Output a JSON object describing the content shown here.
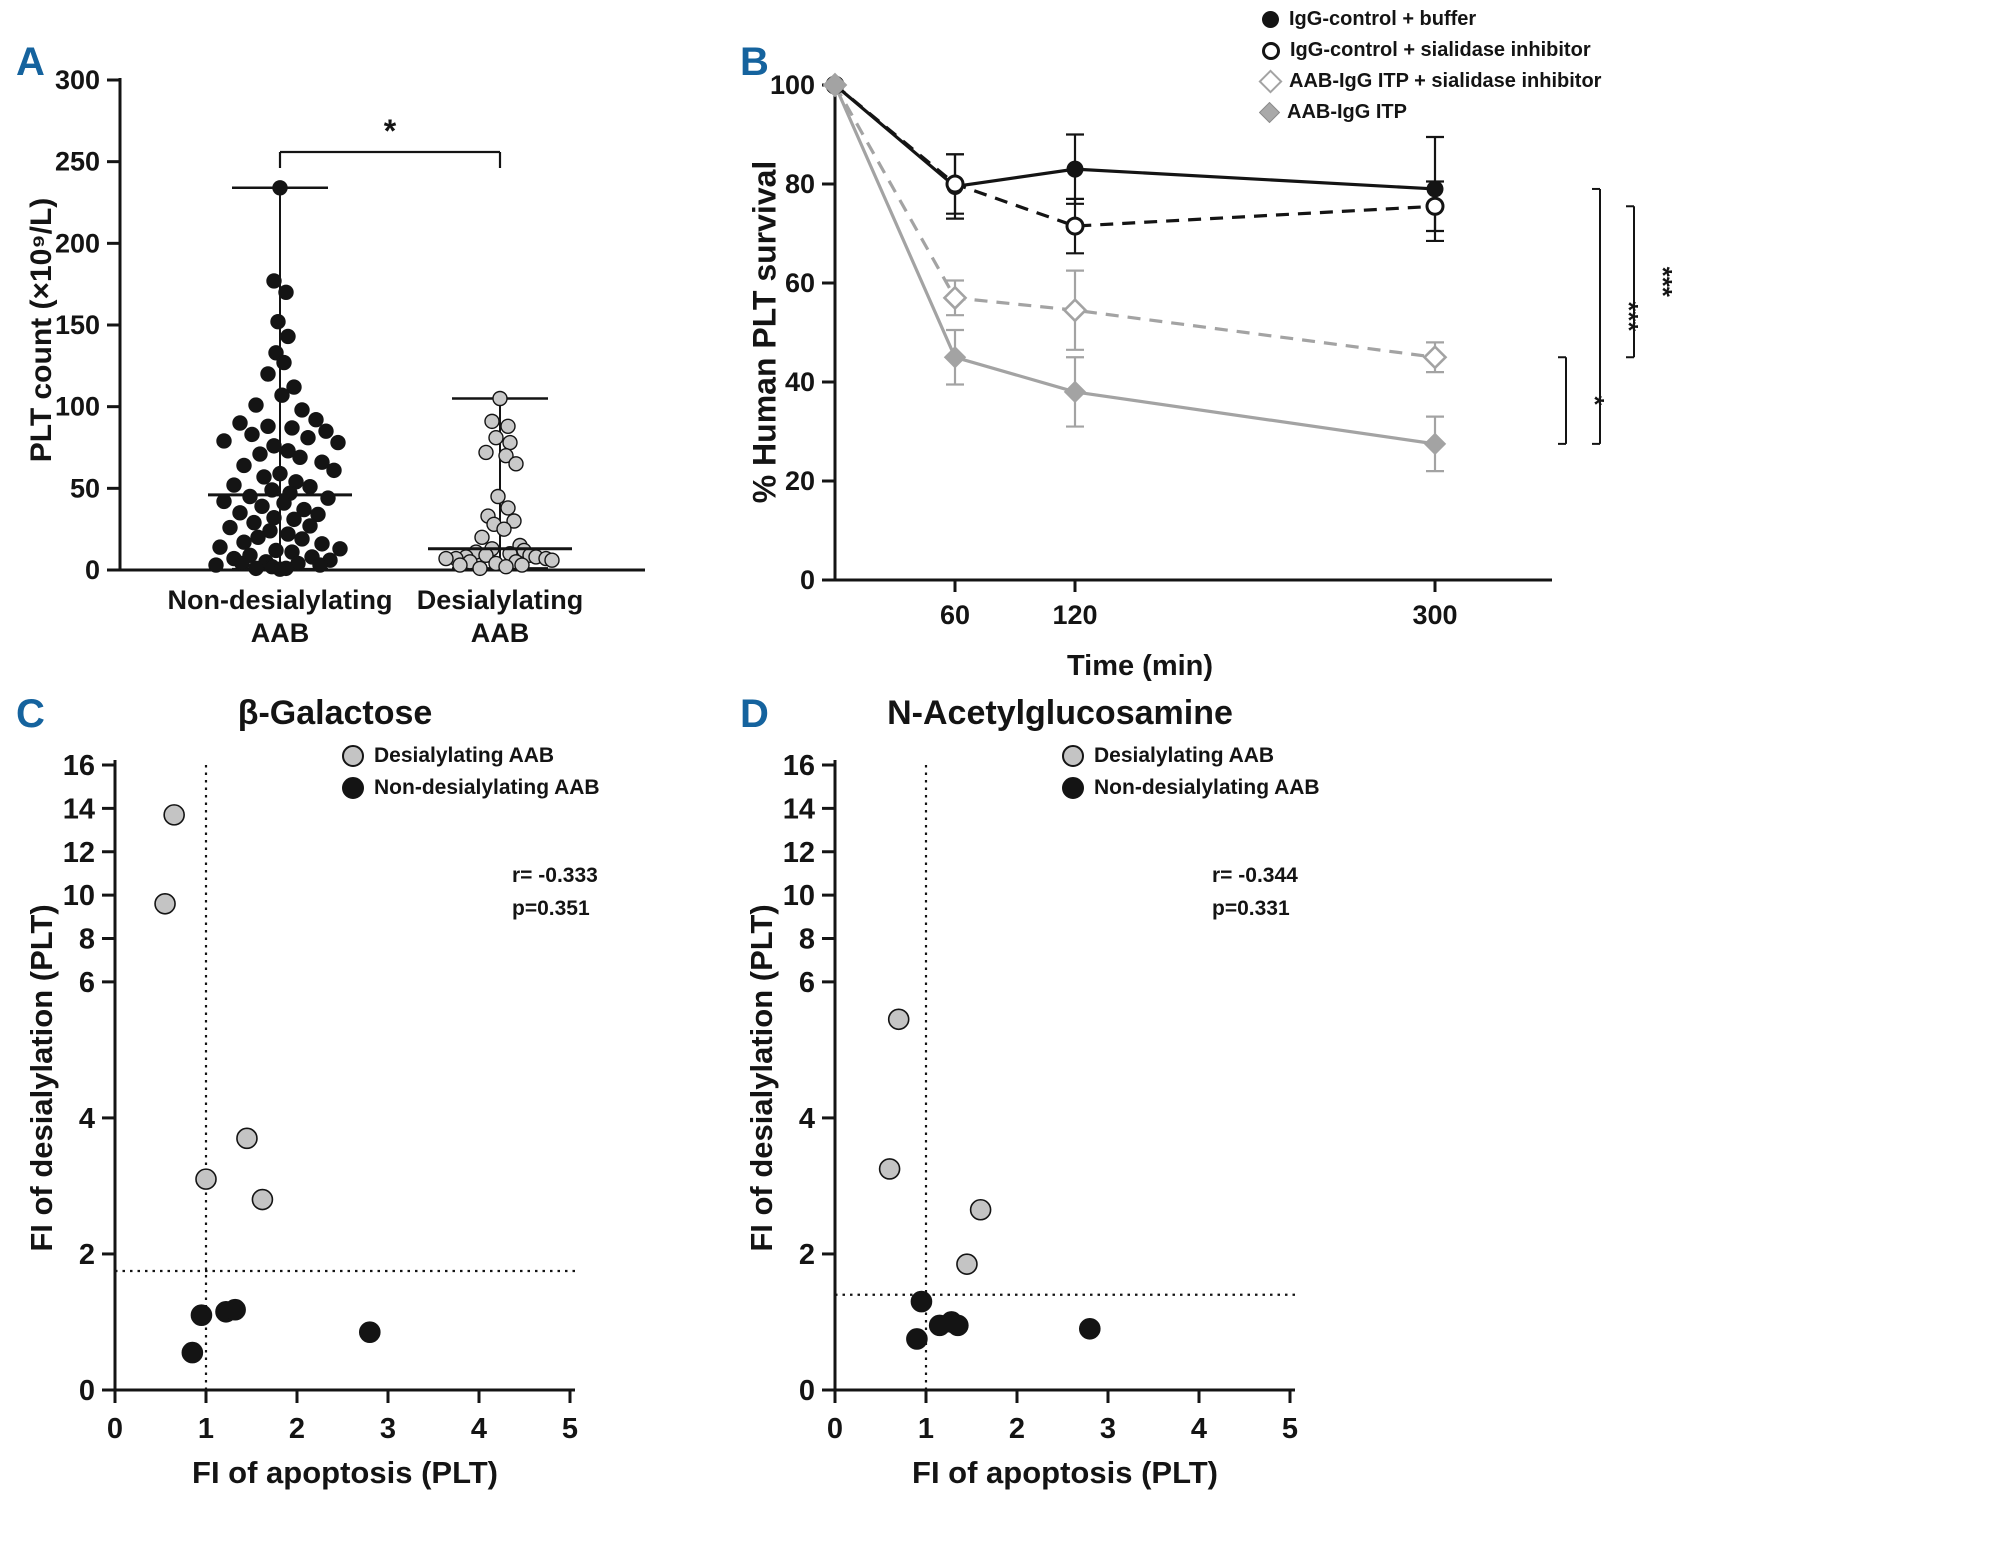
{
  "panels": {
    "A": {
      "letter": "A",
      "ylabel": "PLT count (×10⁹/L)",
      "groups": [
        {
          "line1": "Non-desialylating",
          "line2": "AAB"
        },
        {
          "line1": "Desialylating",
          "line2": "AAB"
        }
      ]
    },
    "B": {
      "letter": "B",
      "ylabel": "% Human PLT survival",
      "xlabel": "Time (min)",
      "legend": [
        "IgG-control + buffer",
        "IgG-control + sialidase inhibitor",
        "AAB-IgG ITP + sialidase inhibitor",
        "AAB-IgG ITP"
      ]
    },
    "C": {
      "letter": "C",
      "title": "β-Galactose",
      "ylabel": "FI of desialylation (PLT)",
      "xlabel": "FI of apoptosis (PLT)",
      "legend": [
        "Desialylating AAB",
        "Non-desialylating AAB"
      ],
      "stats_r": "r= -0.333",
      "stats_p": "p=0.351"
    },
    "D": {
      "letter": "D",
      "title": "N-Acetylglucosamine",
      "ylabel": "FI of desialylation (PLT)",
      "xlabel": "FI of apoptosis (PLT)",
      "legend": [
        "Desialylating AAB",
        "Non-desialylating AAB"
      ],
      "stats_r": "r= -0.344",
      "stats_p": "p=0.331"
    }
  },
  "chart_data": [
    {
      "id": "A",
      "type": "scatter",
      "subtype": "dot-plot-with-median-and-range",
      "ylabel": "PLT count (×10⁹/L)",
      "ylim": [
        0,
        300
      ],
      "yticks": [
        0,
        50,
        100,
        150,
        200,
        250,
        300
      ],
      "significance_label": "*",
      "groups": [
        {
          "name": "Non-desialylating AAB",
          "marker_fill": "#141414",
          "median": 46,
          "min": 0.5,
          "max": 234,
          "points": [
            [
              0,
              234
            ],
            [
              -6,
              177
            ],
            [
              6,
              170
            ],
            [
              -2,
              152
            ],
            [
              8,
              143
            ],
            [
              -4,
              133
            ],
            [
              4,
              127
            ],
            [
              -12,
              120
            ],
            [
              14,
              112
            ],
            [
              2,
              107
            ],
            [
              -24,
              101
            ],
            [
              22,
              98
            ],
            [
              36,
              92
            ],
            [
              -40,
              90
            ],
            [
              -12,
              88
            ],
            [
              12,
              87
            ],
            [
              46,
              85
            ],
            [
              -28,
              83
            ],
            [
              28,
              81
            ],
            [
              -56,
              79
            ],
            [
              58,
              78
            ],
            [
              -6,
              76
            ],
            [
              8,
              73
            ],
            [
              -20,
              71
            ],
            [
              20,
              69
            ],
            [
              42,
              66
            ],
            [
              -36,
              64
            ],
            [
              54,
              61
            ],
            [
              0,
              59
            ],
            [
              -16,
              57
            ],
            [
              16,
              54
            ],
            [
              -46,
              52
            ],
            [
              30,
              51
            ],
            [
              -8,
              49
            ],
            [
              10,
              47
            ],
            [
              -30,
              45
            ],
            [
              48,
              44
            ],
            [
              -56,
              42
            ],
            [
              4,
              41
            ],
            [
              -18,
              39
            ],
            [
              24,
              37
            ],
            [
              -40,
              35
            ],
            [
              38,
              34
            ],
            [
              -6,
              32
            ],
            [
              14,
              31
            ],
            [
              -26,
              29
            ],
            [
              30,
              27
            ],
            [
              -50,
              26
            ],
            [
              -10,
              24
            ],
            [
              8,
              22
            ],
            [
              -22,
              20
            ],
            [
              22,
              19
            ],
            [
              -36,
              17
            ],
            [
              42,
              16
            ],
            [
              -60,
              14
            ],
            [
              60,
              13
            ],
            [
              -4,
              12
            ],
            [
              12,
              11
            ],
            [
              -30,
              9
            ],
            [
              32,
              8
            ],
            [
              -46,
              7
            ],
            [
              50,
              6
            ],
            [
              -14,
              5
            ],
            [
              18,
              4
            ],
            [
              -38,
              4
            ],
            [
              40,
              3
            ],
            [
              -64,
              3
            ],
            [
              -8,
              2
            ],
            [
              6,
              1
            ],
            [
              -24,
              1
            ],
            [
              0,
              0.5
            ]
          ]
        },
        {
          "name": "Desialylating AAB",
          "marker_fill": "#c9c9c9",
          "median": 13,
          "min": 1,
          "max": 105,
          "points": [
            [
              0,
              105
            ],
            [
              -8,
              91
            ],
            [
              8,
              88
            ],
            [
              -4,
              81
            ],
            [
              10,
              78
            ],
            [
              -14,
              72
            ],
            [
              6,
              70
            ],
            [
              16,
              65
            ],
            [
              -2,
              45
            ],
            [
              8,
              38
            ],
            [
              -12,
              33
            ],
            [
              14,
              30
            ],
            [
              -6,
              28
            ],
            [
              4,
              25
            ],
            [
              -18,
              20
            ],
            [
              20,
              15
            ],
            [
              -8,
              13
            ],
            [
              24,
              12
            ],
            [
              -24,
              11
            ],
            [
              10,
              10
            ],
            [
              -14,
              9
            ],
            [
              30,
              9
            ],
            [
              -34,
              8
            ],
            [
              36,
              8
            ],
            [
              -44,
              7
            ],
            [
              46,
              7
            ],
            [
              -54,
              7
            ],
            [
              52,
              6
            ],
            [
              -30,
              5
            ],
            [
              16,
              5
            ],
            [
              -4,
              4
            ],
            [
              22,
              3
            ],
            [
              -40,
              3
            ],
            [
              6,
              2
            ],
            [
              -20,
              1
            ]
          ]
        }
      ]
    },
    {
      "id": "B",
      "type": "line",
      "x": [
        0,
        60,
        120,
        300
      ],
      "xticks": [
        60,
        120,
        300
      ],
      "xlabel": "Time (min)",
      "ylabel": "% Human PLT survival",
      "ylim": [
        0,
        100
      ],
      "yticks": [
        0,
        20,
        40,
        60,
        80,
        100
      ],
      "legend_position": "top-right",
      "series": [
        {
          "name": "IgG-control + buffer",
          "line": "solid",
          "color": "#141414",
          "marker": "circle-filled",
          "values": [
            100,
            79.5,
            83,
            79
          ],
          "errors": [
            0,
            6.5,
            7,
            10.5
          ]
        },
        {
          "name": "IgG-control + sialidase inhibitor",
          "line": "dashed",
          "color": "#141414",
          "marker": "circle-open",
          "values": [
            100,
            80,
            71.5,
            75.5
          ],
          "errors": [
            0,
            6,
            5.5,
            5
          ]
        },
        {
          "name": "AAB-IgG ITP + sialidase inhibitor",
          "line": "dashed",
          "color": "#a3a3a3",
          "marker": "diamond-open",
          "values": [
            100,
            57,
            54.5,
            45
          ],
          "errors": [
            0,
            3.5,
            8,
            3
          ]
        },
        {
          "name": "AAB-IgG ITP",
          "line": "solid",
          "color": "#a3a3a3",
          "marker": "diamond-filled",
          "values": [
            100,
            45,
            38,
            27.5
          ],
          "errors": [
            0,
            5.5,
            7,
            5.5
          ]
        }
      ],
      "significance_brackets": [
        {
          "label": "*",
          "y1": 27.5,
          "y2": 45
        },
        {
          "label": "***",
          "y1": 27.5,
          "y2": 79
        },
        {
          "label": "***",
          "y1": 45,
          "y2": 75.5
        }
      ]
    },
    {
      "id": "C",
      "type": "scatter",
      "title": "β-Galactose",
      "xlabel": "FI of apoptosis (PLT)",
      "ylabel": "FI of desialylation (PLT)",
      "xlim": [
        0,
        5
      ],
      "xticks": [
        0,
        1,
        2,
        3,
        4,
        5
      ],
      "ylim": [
        0,
        16
      ],
      "yticks": [
        0,
        2,
        4,
        6,
        8,
        10,
        12,
        14,
        16
      ],
      "y_axis_break": {
        "at": 6,
        "fraction": 0.653
      },
      "ref_lines": {
        "vertical_x": 1,
        "horizontal_y": 1.75
      },
      "stats": {
        "r": "r= -0.333",
        "p": "p=0.351"
      },
      "series": [
        {
          "name": "Desialylating AAB",
          "fill": "#c4c4c4",
          "points": [
            [
              0.65,
              13.7
            ],
            [
              0.55,
              9.6
            ],
            [
              1.0,
              3.1
            ],
            [
              1.45,
              3.7
            ],
            [
              1.62,
              2.8
            ]
          ]
        },
        {
          "name": "Non-desialylating AAB",
          "fill": "#141414",
          "points": [
            [
              0.95,
              1.1
            ],
            [
              0.85,
              0.55
            ],
            [
              1.22,
              1.15
            ],
            [
              1.32,
              1.18
            ],
            [
              2.8,
              0.85
            ]
          ]
        }
      ]
    },
    {
      "id": "D",
      "type": "scatter",
      "title": "N-Acetylglucosamine",
      "xlabel": "FI of apoptosis (PLT)",
      "ylabel": "FI of desialylation (PLT)",
      "xlim": [
        0,
        5
      ],
      "xticks": [
        0,
        1,
        2,
        3,
        4,
        5
      ],
      "ylim": [
        0,
        16
      ],
      "yticks": [
        0,
        2,
        4,
        6,
        8,
        10,
        12,
        14,
        16
      ],
      "y_axis_break": {
        "at": 6,
        "fraction": 0.653
      },
      "ref_lines": {
        "vertical_x": 1,
        "horizontal_y": 1.4
      },
      "stats": {
        "r": "r= -0.344",
        "p": "p=0.331"
      },
      "series": [
        {
          "name": "Desialylating AAB",
          "fill": "#c4c4c4",
          "points": [
            [
              0.7,
              5.45
            ],
            [
              0.6,
              3.25
            ],
            [
              1.6,
              2.65
            ],
            [
              1.45,
              1.85
            ]
          ]
        },
        {
          "name": "Non-desialylating AAB",
          "fill": "#141414",
          "points": [
            [
              0.95,
              1.3
            ],
            [
              0.9,
              0.75
            ],
            [
              1.15,
              0.95
            ],
            [
              1.28,
              1.0
            ],
            [
              1.35,
              0.95
            ],
            [
              2.8,
              0.9
            ]
          ]
        }
      ]
    }
  ]
}
